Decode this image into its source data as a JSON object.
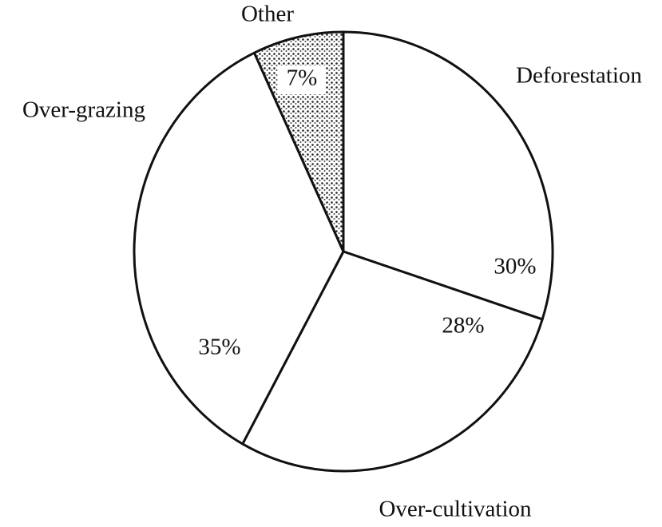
{
  "chart_data": {
    "type": "pie",
    "categories": [
      "Deforestation",
      "Over-cultivation",
      "Over-grazing",
      "Other"
    ],
    "values": [
      30,
      28,
      35,
      7
    ],
    "value_labels": [
      "30%",
      "28%",
      "35%",
      "7%"
    ],
    "colors": [
      "#ffffff",
      "#ffffff",
      "#ffffff",
      "#c4c4c4"
    ]
  }
}
